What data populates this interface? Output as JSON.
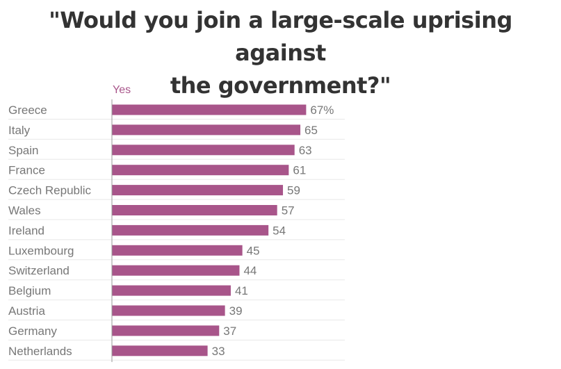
{
  "colors": {
    "bar": "#a8558a",
    "title": "#333333",
    "label": "#777777",
    "axis": "#999999",
    "grid": "#e8e8e8"
  },
  "chart_data": {
    "type": "bar",
    "orientation": "horizontal",
    "title_lines": [
      "\"Would you join a large-scale uprising against",
      "the government?\""
    ],
    "series": [
      {
        "name": "Yes",
        "values": [
          67,
          65,
          63,
          61,
          59,
          57,
          54,
          45,
          44,
          41,
          39,
          37,
          33
        ]
      }
    ],
    "categories": [
      "Greece",
      "Italy",
      "Spain",
      "France",
      "Czech Republic",
      "Wales",
      "Ireland",
      "Luxembourg",
      "Switzerland",
      "Belgium",
      "Austria",
      "Germany",
      "Netherlands"
    ],
    "value_labels": [
      "67%",
      "65",
      "63",
      "61",
      "59",
      "57",
      "54",
      "45",
      "44",
      "41",
      "39",
      "37",
      "33"
    ],
    "xlim": [
      0,
      100
    ],
    "grid": true
  }
}
